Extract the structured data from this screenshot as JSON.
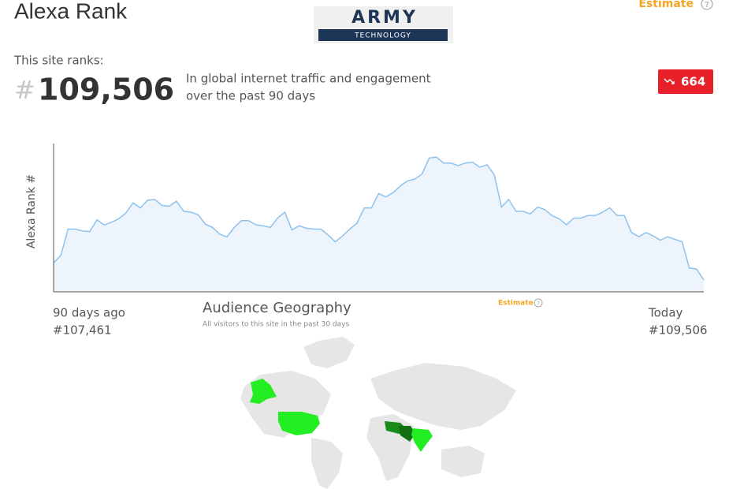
{
  "header": {
    "title": "Alexa Rank",
    "estimate": "Estimate",
    "help": "?",
    "logo_top": "ARMY",
    "logo_bottom": "TECHNOLOGY"
  },
  "rank": {
    "intro": "This site ranks:",
    "hash": "#",
    "value": "109,506",
    "desc_line1": "In global internet traffic and engagement",
    "desc_line2": "over the past 90 days",
    "change": "664"
  },
  "rank_chart": {
    "type": "line",
    "y_label": "Alexa Rank #",
    "values": [
      107461,
      106600,
      103500,
      103500,
      103700,
      103800,
      102400,
      103000,
      102700,
      102300,
      101600,
      100400,
      101000,
      100100,
      100000,
      100700,
      100800,
      100200,
      101400,
      101500,
      101800,
      102900,
      103300,
      104100,
      104400,
      103300,
      102500,
      102500,
      103000,
      103100,
      103300,
      102200,
      101500,
      103600,
      103100,
      103400,
      103500,
      103500,
      104200,
      105000,
      104300,
      103500,
      102800,
      101000,
      101000,
      99300,
      99700,
      99200,
      98400,
      97800,
      97600,
      97000,
      95100,
      95000,
      95700,
      95700,
      96000,
      95700,
      95600,
      96200,
      95900,
      97100,
      100900,
      100000,
      101400,
      101400,
      101700,
      100900,
      101200,
      101900,
      102300,
      103000,
      102200,
      102200,
      101900,
      101900,
      101500,
      101000,
      101900,
      101900,
      103900,
      104400,
      103900,
      104300,
      104800,
      104400,
      104700,
      105000,
      108100,
      108200,
      109506
    ],
    "ylim": [
      110900,
      93400
    ],
    "color": "#8ec2ee",
    "fill": "#eef4fb",
    "start_label": "90 days ago",
    "start_value": "#107,461",
    "end_label": "Today",
    "end_value": "#109,506"
  },
  "geography": {
    "title": "Audience Geography",
    "subtitle": "All visitors to this site in the past 30 days",
    "estimate": "Estimate",
    "help": "?"
  }
}
